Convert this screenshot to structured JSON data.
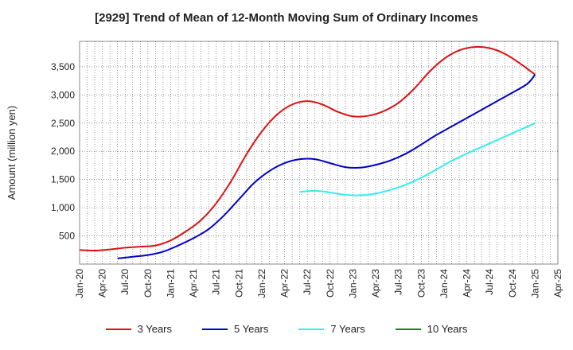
{
  "chart_data": {
    "type": "line",
    "title": "[2929]  Trend of Mean of 12-Month Moving Sum of Ordinary Incomes",
    "xlabel": "",
    "ylabel": "Amount (million yen)",
    "ylim": [
      0,
      3950
    ],
    "yticks": [
      500,
      1000,
      1500,
      2000,
      2500,
      3000,
      3500
    ],
    "ytick_labels": [
      "500",
      "1,000",
      "1,500",
      "2,000",
      "2,500",
      "3,000",
      "3,500"
    ],
    "x_start": 0,
    "x_end": 63,
    "xticks": [
      {
        "label": "Jan-20",
        "m": 0
      },
      {
        "label": "Apr-20",
        "m": 3
      },
      {
        "label": "Jul-20",
        "m": 6
      },
      {
        "label": "Oct-20",
        "m": 9
      },
      {
        "label": "Jan-21",
        "m": 12
      },
      {
        "label": "Apr-21",
        "m": 15
      },
      {
        "label": "Jul-21",
        "m": 18
      },
      {
        "label": "Oct-21",
        "m": 21
      },
      {
        "label": "Jan-22",
        "m": 24
      },
      {
        "label": "Apr-22",
        "m": 27
      },
      {
        "label": "Jul-22",
        "m": 30
      },
      {
        "label": "Oct-22",
        "m": 33
      },
      {
        "label": "Jan-23",
        "m": 36
      },
      {
        "label": "Apr-23",
        "m": 39
      },
      {
        "label": "Jul-23",
        "m": 42
      },
      {
        "label": "Oct-23",
        "m": 45
      },
      {
        "label": "Jan-24",
        "m": 48
      },
      {
        "label": "Apr-24",
        "m": 51
      },
      {
        "label": "Jul-24",
        "m": 54
      },
      {
        "label": "Oct-24",
        "m": 57
      },
      {
        "label": "Jan-25",
        "m": 60
      },
      {
        "label": "Apr-25",
        "m": 63
      }
    ],
    "series": [
      {
        "name": "3 Years",
        "color": "#dd1111",
        "points": [
          [
            0,
            250
          ],
          [
            2,
            240
          ],
          [
            4,
            260
          ],
          [
            6,
            290
          ],
          [
            8,
            310
          ],
          [
            10,
            330
          ],
          [
            12,
            420
          ],
          [
            14,
            580
          ],
          [
            16,
            780
          ],
          [
            18,
            1080
          ],
          [
            20,
            1480
          ],
          [
            22,
            1950
          ],
          [
            24,
            2350
          ],
          [
            26,
            2650
          ],
          [
            28,
            2830
          ],
          [
            30,
            2890
          ],
          [
            32,
            2830
          ],
          [
            34,
            2700
          ],
          [
            36,
            2620
          ],
          [
            38,
            2630
          ],
          [
            40,
            2710
          ],
          [
            42,
            2860
          ],
          [
            44,
            3100
          ],
          [
            46,
            3400
          ],
          [
            48,
            3640
          ],
          [
            50,
            3790
          ],
          [
            52,
            3850
          ],
          [
            54,
            3830
          ],
          [
            56,
            3730
          ],
          [
            58,
            3560
          ],
          [
            60,
            3360
          ]
        ]
      },
      {
        "name": "5 Years",
        "color": "#0000cc",
        "points": [
          [
            5,
            100
          ],
          [
            7,
            130
          ],
          [
            9,
            160
          ],
          [
            11,
            220
          ],
          [
            13,
            330
          ],
          [
            15,
            460
          ],
          [
            17,
            620
          ],
          [
            19,
            860
          ],
          [
            21,
            1150
          ],
          [
            23,
            1440
          ],
          [
            25,
            1650
          ],
          [
            27,
            1790
          ],
          [
            29,
            1860
          ],
          [
            31,
            1860
          ],
          [
            33,
            1790
          ],
          [
            35,
            1720
          ],
          [
            37,
            1710
          ],
          [
            39,
            1760
          ],
          [
            41,
            1840
          ],
          [
            43,
            1960
          ],
          [
            45,
            2120
          ],
          [
            47,
            2290
          ],
          [
            49,
            2440
          ],
          [
            51,
            2590
          ],
          [
            53,
            2740
          ],
          [
            55,
            2890
          ],
          [
            57,
            3040
          ],
          [
            59,
            3200
          ],
          [
            60,
            3360
          ]
        ]
      },
      {
        "name": "7 Years",
        "color": "#33eeee",
        "points": [
          [
            29,
            1280
          ],
          [
            31,
            1300
          ],
          [
            33,
            1270
          ],
          [
            35,
            1230
          ],
          [
            37,
            1220
          ],
          [
            39,
            1250
          ],
          [
            41,
            1320
          ],
          [
            43,
            1410
          ],
          [
            45,
            1530
          ],
          [
            47,
            1680
          ],
          [
            49,
            1830
          ],
          [
            51,
            1960
          ],
          [
            53,
            2080
          ],
          [
            55,
            2200
          ],
          [
            57,
            2320
          ],
          [
            59,
            2440
          ],
          [
            60,
            2500
          ]
        ]
      },
      {
        "name": "10 Years",
        "color": "#118811",
        "points": []
      }
    ],
    "legend_position": "bottom"
  }
}
